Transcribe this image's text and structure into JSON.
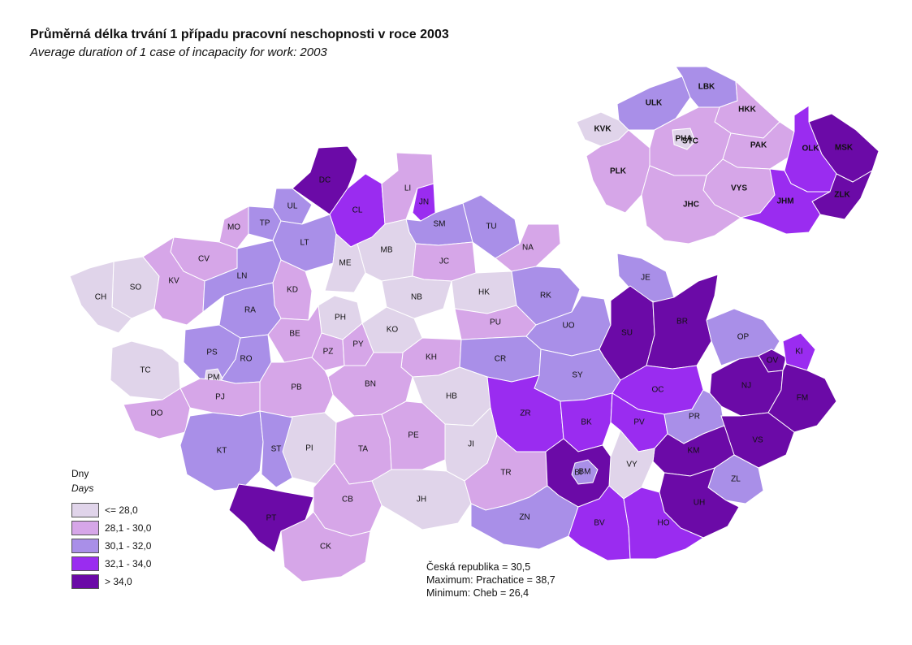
{
  "title": "Průměrná délka trvání 1 případu pracovní neschopnosti v roce 2003",
  "subtitle": "Average duration of 1 case of incapacity for work: 2003",
  "legend": {
    "unit": "Dny",
    "unit_en": "Days",
    "classes": [
      {
        "label": "<= 28,0",
        "color": "#e0d4ea"
      },
      {
        "label": "28,1 - 30,0",
        "color": "#d6a6e8"
      },
      {
        "label": "30,1 - 32,0",
        "color": "#a98fe8"
      },
      {
        "label": "32,1 - 34,0",
        "color": "#9a2cf0"
      },
      {
        "label": "> 34,0",
        "color": "#6b0aa7"
      }
    ]
  },
  "stats": {
    "cr": "Česká republika =  30,5",
    "max": "Maximum: Prachatice =  38,7",
    "min": "Minimum: Cheb  = 26,4"
  },
  "districts": [
    {
      "code": "DC",
      "class": 4
    },
    {
      "code": "CL",
      "class": 3
    },
    {
      "code": "LI",
      "class": 1
    },
    {
      "code": "JN",
      "class": 3
    },
    {
      "code": "UL",
      "class": 2
    },
    {
      "code": "TP",
      "class": 2
    },
    {
      "code": "MO",
      "class": 1
    },
    {
      "code": "LT",
      "class": 2
    },
    {
      "code": "SM",
      "class": 2
    },
    {
      "code": "TU",
      "class": 2
    },
    {
      "code": "CV",
      "class": 1
    },
    {
      "code": "MB",
      "class": 0
    },
    {
      "code": "ME",
      "class": 0
    },
    {
      "code": "JC",
      "class": 1
    },
    {
      "code": "NA",
      "class": 1
    },
    {
      "code": "SO",
      "class": 0
    },
    {
      "code": "CH",
      "class": 0
    },
    {
      "code": "KV",
      "class": 1
    },
    {
      "code": "LN",
      "class": 2
    },
    {
      "code": "KD",
      "class": 1
    },
    {
      "code": "NB",
      "class": 0
    },
    {
      "code": "HK",
      "class": 0
    },
    {
      "code": "RK",
      "class": 2
    },
    {
      "code": "JE",
      "class": 2
    },
    {
      "code": "RA",
      "class": 2
    },
    {
      "code": "PH",
      "class": 0
    },
    {
      "code": "KO",
      "class": 0
    },
    {
      "code": "PU",
      "class": 1
    },
    {
      "code": "UO",
      "class": 2
    },
    {
      "code": "SU",
      "class": 4
    },
    {
      "code": "BR",
      "class": 4
    },
    {
      "code": "PS",
      "class": 2
    },
    {
      "code": "BE",
      "class": 1
    },
    {
      "code": "PZ",
      "class": 1
    },
    {
      "code": "PY",
      "class": 1
    },
    {
      "code": "KH",
      "class": 1
    },
    {
      "code": "CR",
      "class": 2
    },
    {
      "code": "TC",
      "class": 0
    },
    {
      "code": "RO",
      "class": 2
    },
    {
      "code": "PM",
      "class": 0
    },
    {
      "code": "BN",
      "class": 1
    },
    {
      "code": "SY",
      "class": 2
    },
    {
      "code": "OP",
      "class": 2
    },
    {
      "code": "OV",
      "class": 4
    },
    {
      "code": "KI",
      "class": 3
    },
    {
      "code": "PJ",
      "class": 1
    },
    {
      "code": "PB",
      "class": 1
    },
    {
      "code": "HB",
      "class": 0
    },
    {
      "code": "OC",
      "class": 3
    },
    {
      "code": "NJ",
      "class": 4
    },
    {
      "code": "FM",
      "class": 4
    },
    {
      "code": "DO",
      "class": 1
    },
    {
      "code": "ZR",
      "class": 3
    },
    {
      "code": "BK",
      "class": 3
    },
    {
      "code": "PV",
      "class": 3
    },
    {
      "code": "PR",
      "class": 2
    },
    {
      "code": "KT",
      "class": 2
    },
    {
      "code": "PI",
      "class": 0
    },
    {
      "code": "TA",
      "class": 1
    },
    {
      "code": "PE",
      "class": 1
    },
    {
      "code": "JI",
      "class": 0
    },
    {
      "code": "VS",
      "class": 4
    },
    {
      "code": "ST",
      "class": 2
    },
    {
      "code": "KM",
      "class": 4
    },
    {
      "code": "BM",
      "class": 2
    },
    {
      "code": "VY",
      "class": 0
    },
    {
      "code": "ZL",
      "class": 2
    },
    {
      "code": "PT",
      "class": 4
    },
    {
      "code": "JH",
      "class": 0
    },
    {
      "code": "TR",
      "class": 1
    },
    {
      "code": "BI",
      "class": 4
    },
    {
      "code": "UH",
      "class": 4
    },
    {
      "code": "CB",
      "class": 1
    },
    {
      "code": "ZN",
      "class": 2
    },
    {
      "code": "BV",
      "class": 3
    },
    {
      "code": "HO",
      "class": 3
    },
    {
      "code": "CK",
      "class": 1
    }
  ],
  "regions": [
    {
      "code": "ULK",
      "class": 2
    },
    {
      "code": "LBK",
      "class": 2
    },
    {
      "code": "HKK",
      "class": 1
    },
    {
      "code": "KVK",
      "class": 0
    },
    {
      "code": "PHA",
      "class": 0
    },
    {
      "code": "STC",
      "class": 1
    },
    {
      "code": "PAK",
      "class": 1
    },
    {
      "code": "MSK",
      "class": 4
    },
    {
      "code": "PLK",
      "class": 1
    },
    {
      "code": "OLK",
      "class": 3
    },
    {
      "code": "VYS",
      "class": 1
    },
    {
      "code": "ZLK",
      "class": 4
    },
    {
      "code": "JHM",
      "class": 3
    },
    {
      "code": "JHC",
      "class": 1
    }
  ]
}
